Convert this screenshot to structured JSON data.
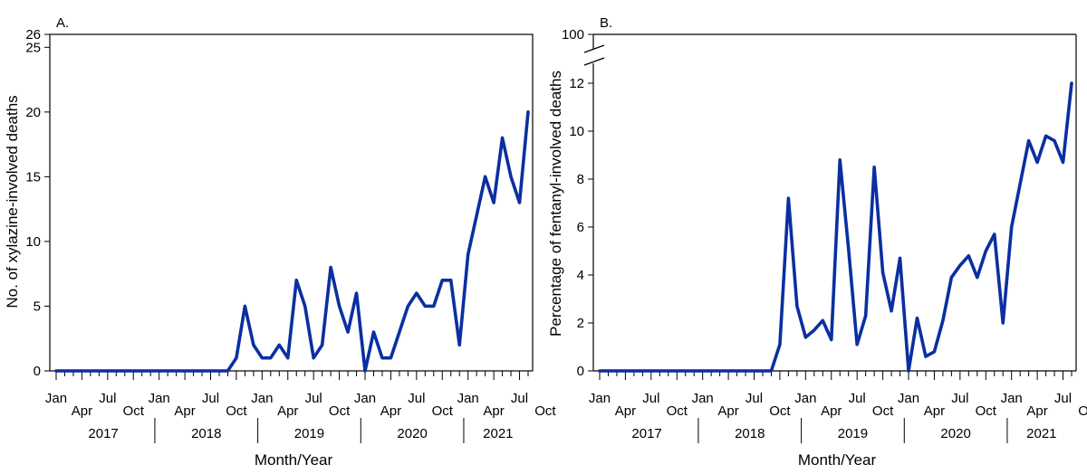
{
  "chart_data": [
    {
      "type": "line",
      "panel_label": "A.",
      "ylabel": "No. of xylazine-involved deaths",
      "xlabel": "Month/Year",
      "ylim": [
        0,
        26
      ],
      "y_ticks": [
        0,
        5,
        10,
        15,
        20,
        25,
        26
      ],
      "grid": false,
      "x_tick_labels": [
        "Jan",
        "Apr",
        "Jul",
        "Oct",
        "Jan",
        "Apr",
        "Jul",
        "Oct",
        "Jan",
        "Apr",
        "Jul",
        "Oct",
        "Jan",
        "Apr",
        "Jul",
        "Oct",
        "Jan",
        "Apr",
        "Jul",
        "Oct"
      ],
      "years": [
        "2017",
        "2018",
        "2019",
        "2020",
        "2021"
      ],
      "series": [
        {
          "color": "#0a2fa0",
          "values": [
            0,
            0,
            0,
            0,
            0,
            0,
            0,
            0,
            0,
            0,
            0,
            0,
            0,
            0,
            0,
            0,
            0,
            0,
            0,
            0,
            0,
            1,
            5,
            2,
            1,
            1,
            2,
            1,
            7,
            5,
            1,
            2,
            8,
            5,
            3,
            6,
            0,
            3,
            1,
            1,
            3,
            5,
            6,
            5,
            5,
            7,
            7,
            2,
            9,
            12,
            15,
            13,
            18,
            15,
            13,
            20
          ]
        }
      ]
    },
    {
      "type": "line",
      "panel_label": "B.",
      "ylabel": "Percentage of fentanyl-involved deaths",
      "xlabel": "Month/Year",
      "ylim": [
        0,
        100
      ],
      "y_ticks": [
        0,
        2,
        4,
        6,
        8,
        10,
        12,
        100
      ],
      "axis_break": [
        12,
        100
      ],
      "grid": false,
      "x_tick_labels": [
        "Jan",
        "Apr",
        "Jul",
        "Oct",
        "Jan",
        "Apr",
        "Jul",
        "Oct",
        "Jan",
        "Apr",
        "Jul",
        "Oct",
        "Jan",
        "Apr",
        "Jul",
        "Oct",
        "Jan",
        "Apr",
        "Jul",
        "Oct"
      ],
      "years": [
        "2017",
        "2018",
        "2019",
        "2020",
        "2021"
      ],
      "series": [
        {
          "color": "#0a2fa0",
          "values": [
            0,
            0,
            0,
            0,
            0,
            0,
            0,
            0,
            0,
            0,
            0,
            0,
            0,
            0,
            0,
            0,
            0,
            0,
            0,
            0,
            0,
            1.1,
            7.2,
            2.7,
            1.4,
            1.7,
            2.1,
            1.3,
            8.8,
            5.1,
            1.1,
            2.3,
            8.5,
            4.1,
            2.5,
            4.7,
            0,
            2.2,
            0.6,
            0.8,
            2.1,
            3.9,
            4.4,
            4.8,
            3.9,
            5,
            5.7,
            2,
            6,
            7.8,
            9.6,
            8.7,
            9.8,
            9.6,
            8.7,
            12
          ]
        }
      ]
    }
  ]
}
